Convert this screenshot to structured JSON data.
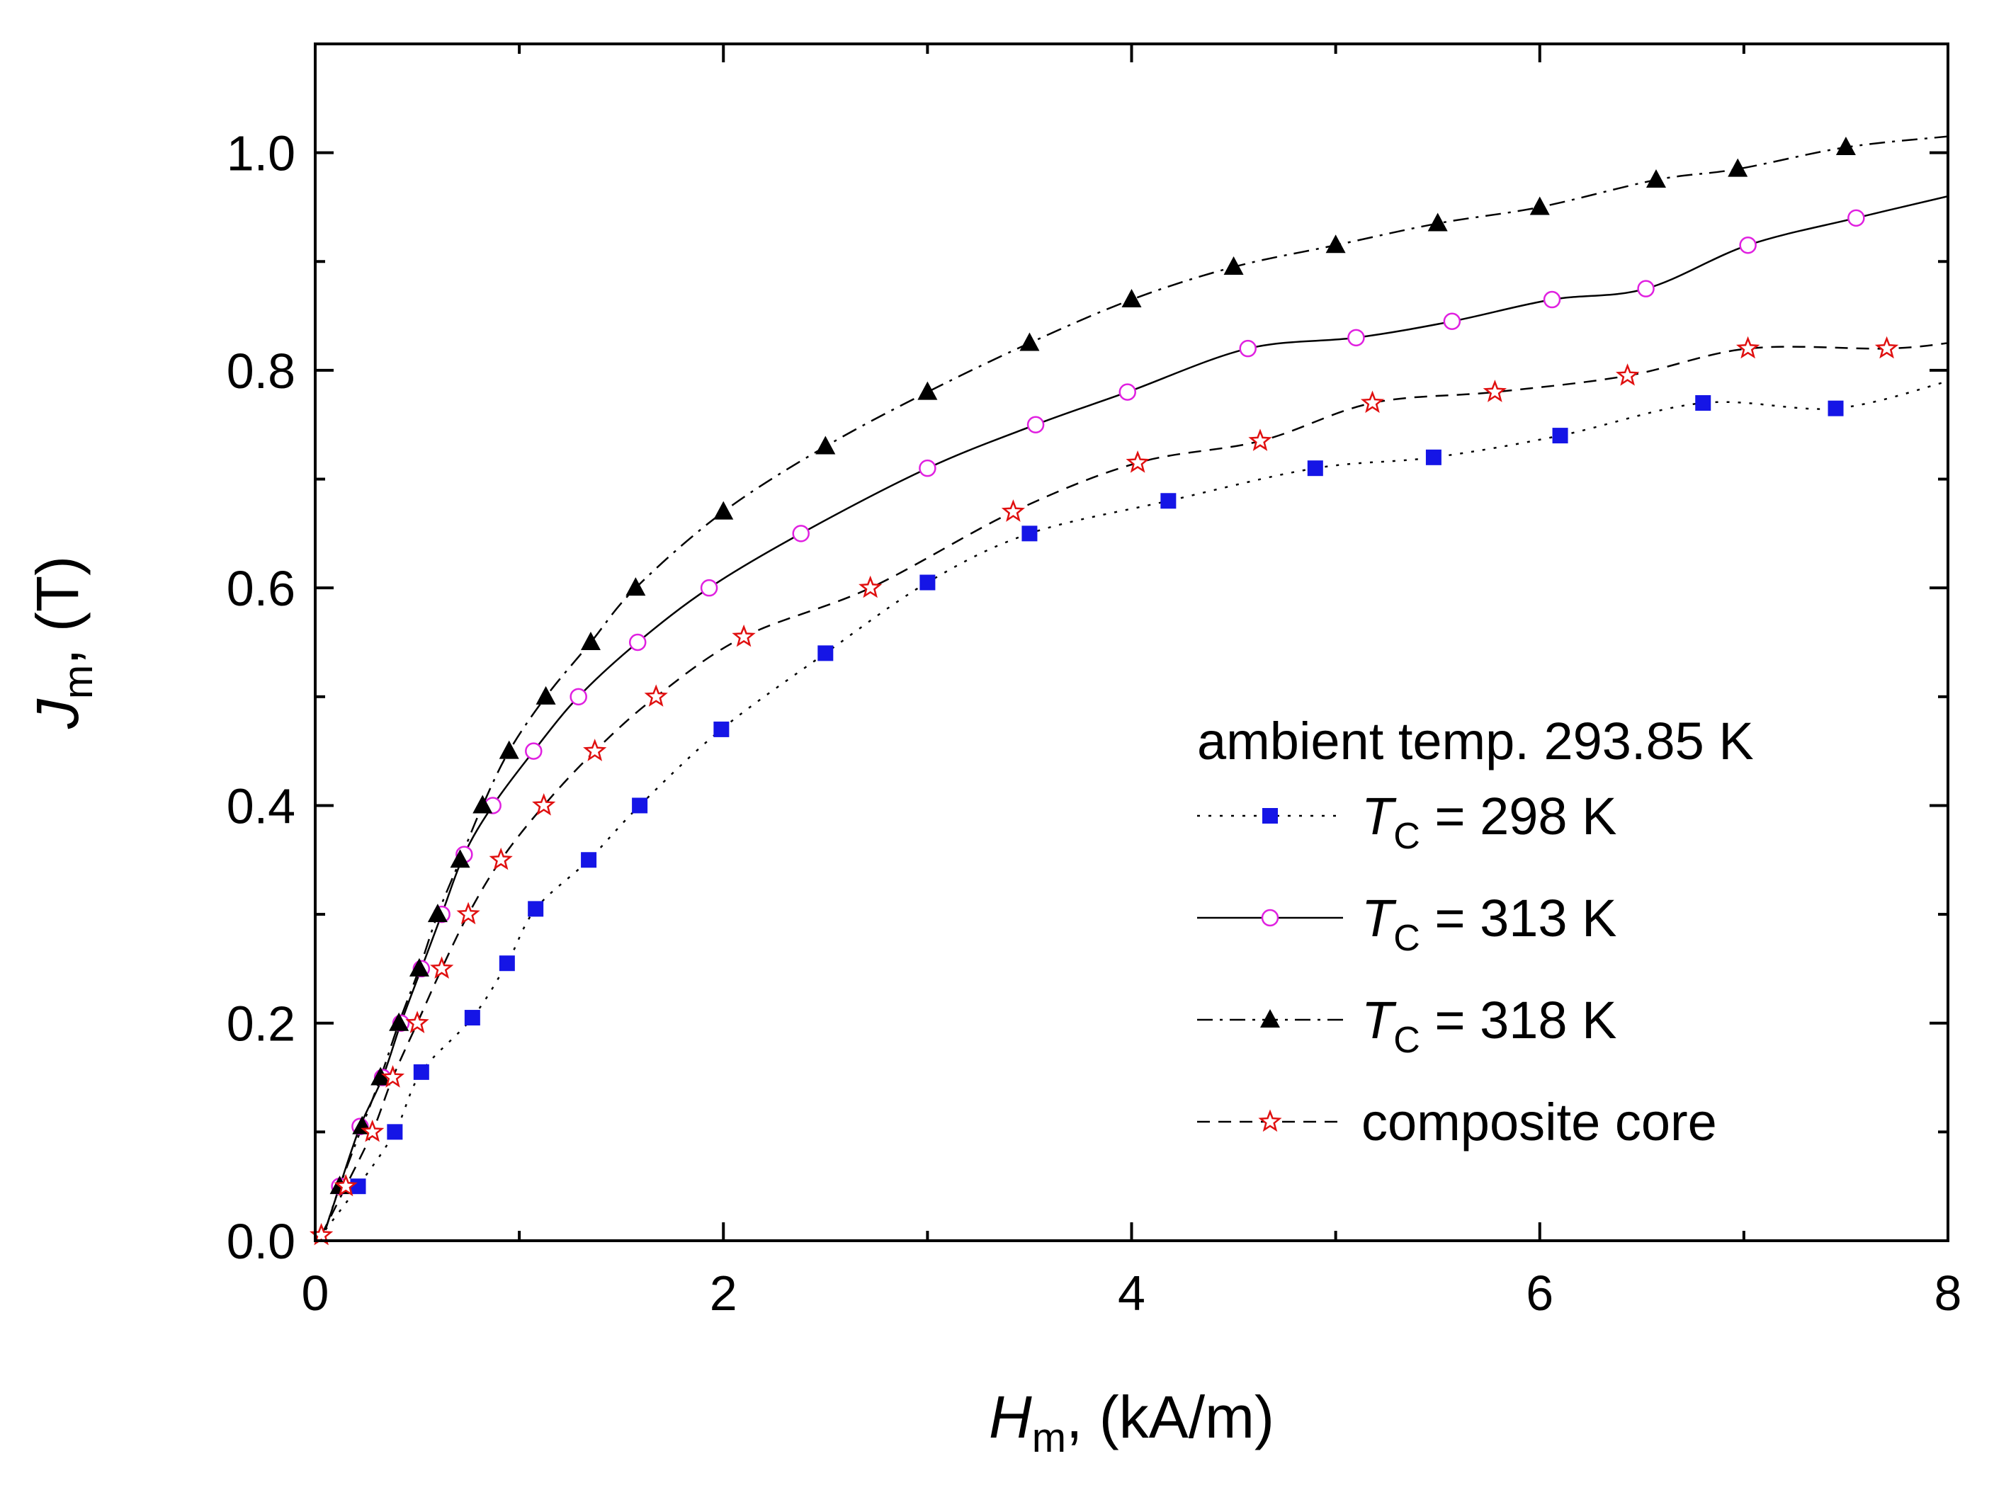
{
  "chart_data": {
    "type": "scatter",
    "xlabel_main": "H",
    "xlabel_sub": "m",
    "xlabel_rest": ", (kA/m)",
    "ylabel_main": "J",
    "ylabel_sub": "m",
    "ylabel_rest": ", (T)",
    "xlim": [
      0,
      8
    ],
    "ylim": [
      0,
      1.1
    ],
    "xticks": [
      0,
      2,
      4,
      6,
      8
    ],
    "xtick_labels": [
      "0",
      "2",
      "4",
      "6",
      "8"
    ],
    "yticks": [
      0.0,
      0.2,
      0.4,
      0.6,
      0.8,
      1.0
    ],
    "ytick_labels": [
      "0.0",
      "0.2",
      "0.4",
      "0.6",
      "0.8",
      "1.0"
    ],
    "legend_title": "ambient temp. 293.85 K",
    "legend_position": "lower-right",
    "series": [
      {
        "name": "TC = 298 K",
        "label_main": "T",
        "label_sub": "C",
        "label_rest": " = 298 K",
        "color": "#1515e6",
        "marker": "square",
        "line": "dotted",
        "points": [
          [
            0.21,
            0.05
          ],
          [
            0.39,
            0.1
          ],
          [
            0.52,
            0.155
          ],
          [
            0.77,
            0.205
          ],
          [
            0.94,
            0.255
          ],
          [
            1.08,
            0.305
          ],
          [
            1.34,
            0.35
          ],
          [
            1.59,
            0.4
          ],
          [
            1.99,
            0.47
          ],
          [
            2.5,
            0.54
          ],
          [
            3.0,
            0.605
          ],
          [
            3.5,
            0.65
          ],
          [
            4.18,
            0.68
          ],
          [
            4.9,
            0.71
          ],
          [
            5.48,
            0.72
          ],
          [
            6.1,
            0.74
          ],
          [
            6.8,
            0.77
          ],
          [
            7.45,
            0.765
          ]
        ],
        "curve": [
          [
            0.05,
            0.01
          ],
          [
            0.21,
            0.05
          ],
          [
            0.39,
            0.1
          ],
          [
            0.52,
            0.155
          ],
          [
            0.77,
            0.205
          ],
          [
            0.94,
            0.255
          ],
          [
            1.08,
            0.305
          ],
          [
            1.34,
            0.35
          ],
          [
            1.59,
            0.4
          ],
          [
            1.99,
            0.47
          ],
          [
            2.5,
            0.54
          ],
          [
            3.0,
            0.605
          ],
          [
            3.5,
            0.65
          ],
          [
            4.18,
            0.68
          ],
          [
            4.9,
            0.71
          ],
          [
            5.48,
            0.72
          ],
          [
            6.1,
            0.74
          ],
          [
            6.8,
            0.77
          ],
          [
            7.45,
            0.765
          ],
          [
            8.0,
            0.79
          ]
        ]
      },
      {
        "name": "TC = 313 K",
        "label_main": "T",
        "label_sub": "C",
        "label_rest": " = 313 K",
        "color": "#e020e0",
        "marker": "circle",
        "line": "solid",
        "points": [
          [
            0.12,
            0.05
          ],
          [
            0.22,
            0.105
          ],
          [
            0.33,
            0.15
          ],
          [
            0.42,
            0.2
          ],
          [
            0.52,
            0.25
          ],
          [
            0.62,
            0.3
          ],
          [
            0.73,
            0.355
          ],
          [
            0.87,
            0.4
          ],
          [
            1.07,
            0.45
          ],
          [
            1.29,
            0.5
          ],
          [
            1.58,
            0.55
          ],
          [
            1.93,
            0.6
          ],
          [
            2.38,
            0.65
          ],
          [
            3.0,
            0.71
          ],
          [
            3.53,
            0.75
          ],
          [
            3.98,
            0.78
          ],
          [
            4.57,
            0.82
          ],
          [
            5.1,
            0.83
          ],
          [
            5.57,
            0.845
          ],
          [
            6.06,
            0.865
          ],
          [
            6.52,
            0.875
          ],
          [
            7.02,
            0.915
          ],
          [
            7.55,
            0.94
          ]
        ],
        "curve": [
          [
            0.05,
            0.01
          ],
          [
            0.12,
            0.05
          ],
          [
            0.22,
            0.105
          ],
          [
            0.33,
            0.15
          ],
          [
            0.42,
            0.2
          ],
          [
            0.52,
            0.25
          ],
          [
            0.62,
            0.3
          ],
          [
            0.73,
            0.355
          ],
          [
            0.87,
            0.4
          ],
          [
            1.07,
            0.45
          ],
          [
            1.29,
            0.5
          ],
          [
            1.58,
            0.55
          ],
          [
            1.93,
            0.6
          ],
          [
            2.38,
            0.65
          ],
          [
            3.0,
            0.71
          ],
          [
            3.53,
            0.75
          ],
          [
            3.98,
            0.78
          ],
          [
            4.57,
            0.82
          ],
          [
            5.1,
            0.83
          ],
          [
            5.57,
            0.845
          ],
          [
            6.06,
            0.865
          ],
          [
            6.52,
            0.875
          ],
          [
            7.02,
            0.915
          ],
          [
            7.55,
            0.94
          ],
          [
            8.0,
            0.96
          ]
        ]
      },
      {
        "name": "TC = 318 K",
        "label_main": "T",
        "label_sub": "C",
        "label_rest": " = 318 K",
        "color": "#000000",
        "marker": "triangle",
        "line": "dashdot",
        "points": [
          [
            0.12,
            0.05
          ],
          [
            0.23,
            0.105
          ],
          [
            0.32,
            0.15
          ],
          [
            0.41,
            0.2
          ],
          [
            0.51,
            0.25
          ],
          [
            0.6,
            0.3
          ],
          [
            0.71,
            0.35
          ],
          [
            0.82,
            0.4
          ],
          [
            0.95,
            0.45
          ],
          [
            1.13,
            0.5
          ],
          [
            1.35,
            0.55
          ],
          [
            1.57,
            0.6
          ],
          [
            2.0,
            0.67
          ],
          [
            2.5,
            0.73
          ],
          [
            3.0,
            0.78
          ],
          [
            3.5,
            0.825
          ],
          [
            4.0,
            0.865
          ],
          [
            4.5,
            0.895
          ],
          [
            5.0,
            0.915
          ],
          [
            5.5,
            0.935
          ],
          [
            6.0,
            0.95
          ],
          [
            6.57,
            0.975
          ],
          [
            6.97,
            0.985
          ],
          [
            7.5,
            1.005
          ]
        ],
        "curve": [
          [
            0.05,
            0.01
          ],
          [
            0.12,
            0.05
          ],
          [
            0.23,
            0.105
          ],
          [
            0.32,
            0.15
          ],
          [
            0.41,
            0.2
          ],
          [
            0.51,
            0.25
          ],
          [
            0.6,
            0.3
          ],
          [
            0.71,
            0.35
          ],
          [
            0.82,
            0.4
          ],
          [
            0.95,
            0.45
          ],
          [
            1.13,
            0.5
          ],
          [
            1.35,
            0.55
          ],
          [
            1.57,
            0.6
          ],
          [
            2.0,
            0.67
          ],
          [
            2.5,
            0.73
          ],
          [
            3.0,
            0.78
          ],
          [
            3.5,
            0.825
          ],
          [
            4.0,
            0.865
          ],
          [
            4.5,
            0.895
          ],
          [
            5.0,
            0.915
          ],
          [
            5.5,
            0.935
          ],
          [
            6.0,
            0.95
          ],
          [
            6.57,
            0.975
          ],
          [
            6.97,
            0.985
          ],
          [
            7.5,
            1.005
          ],
          [
            8.0,
            1.015
          ]
        ]
      },
      {
        "name": "composite core",
        "label_main": "composite core",
        "label_sub": "",
        "label_rest": "",
        "color": "#e01010",
        "marker": "star",
        "line": "dashed",
        "points": [
          [
            0.03,
            0.005
          ],
          [
            0.15,
            0.05
          ],
          [
            0.28,
            0.1
          ],
          [
            0.38,
            0.15
          ],
          [
            0.5,
            0.2
          ],
          [
            0.62,
            0.25
          ],
          [
            0.75,
            0.3
          ],
          [
            0.91,
            0.35
          ],
          [
            1.12,
            0.4
          ],
          [
            1.37,
            0.45
          ],
          [
            1.67,
            0.5
          ],
          [
            2.1,
            0.555
          ],
          [
            2.72,
            0.6
          ],
          [
            3.42,
            0.67
          ],
          [
            4.03,
            0.715
          ],
          [
            4.63,
            0.735
          ],
          [
            5.18,
            0.77
          ],
          [
            5.78,
            0.78
          ],
          [
            6.43,
            0.795
          ],
          [
            7.02,
            0.82
          ],
          [
            7.7,
            0.82
          ]
        ],
        "curve": [
          [
            0.03,
            0.005
          ],
          [
            0.15,
            0.05
          ],
          [
            0.28,
            0.1
          ],
          [
            0.38,
            0.15
          ],
          [
            0.5,
            0.2
          ],
          [
            0.62,
            0.25
          ],
          [
            0.75,
            0.3
          ],
          [
            0.91,
            0.35
          ],
          [
            1.12,
            0.4
          ],
          [
            1.37,
            0.45
          ],
          [
            1.67,
            0.5
          ],
          [
            2.1,
            0.555
          ],
          [
            2.72,
            0.6
          ],
          [
            3.42,
            0.67
          ],
          [
            4.03,
            0.715
          ],
          [
            4.63,
            0.735
          ],
          [
            5.18,
            0.77
          ],
          [
            5.78,
            0.78
          ],
          [
            6.43,
            0.795
          ],
          [
            7.02,
            0.82
          ],
          [
            7.7,
            0.82
          ],
          [
            8.0,
            0.825
          ]
        ]
      }
    ]
  }
}
